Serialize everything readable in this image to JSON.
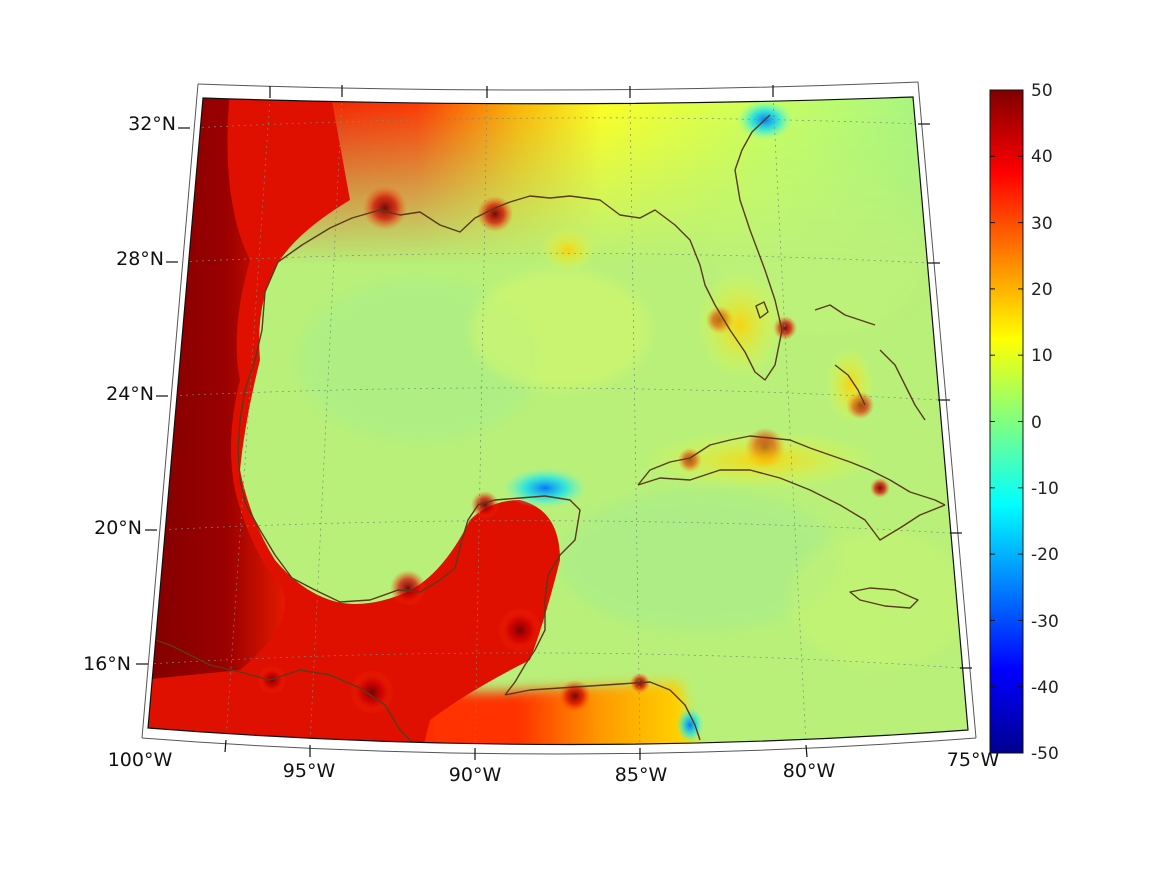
{
  "map": {
    "projection": "conic",
    "lon_range": [
      -100,
      -75
    ],
    "lat_range": [
      14,
      33
    ],
    "lon_labels": [
      "100°W",
      "95°W",
      "90°W",
      "85°W",
      "80°W",
      "75°W"
    ],
    "lat_labels": [
      "32°N",
      "28°N",
      "24°N",
      "20°N",
      "16°N"
    ],
    "graticule": "dotted",
    "coastline_color": "#5a3a1a",
    "background_field_color": "#b8f07a"
  },
  "colorbar": {
    "min": -50,
    "max": 50,
    "tick_labels": [
      "50",
      "40",
      "30",
      "20",
      "10",
      "0",
      "-10",
      "-20",
      "-30",
      "-40",
      "-50"
    ],
    "colormap": "jet",
    "placement": "right"
  }
}
